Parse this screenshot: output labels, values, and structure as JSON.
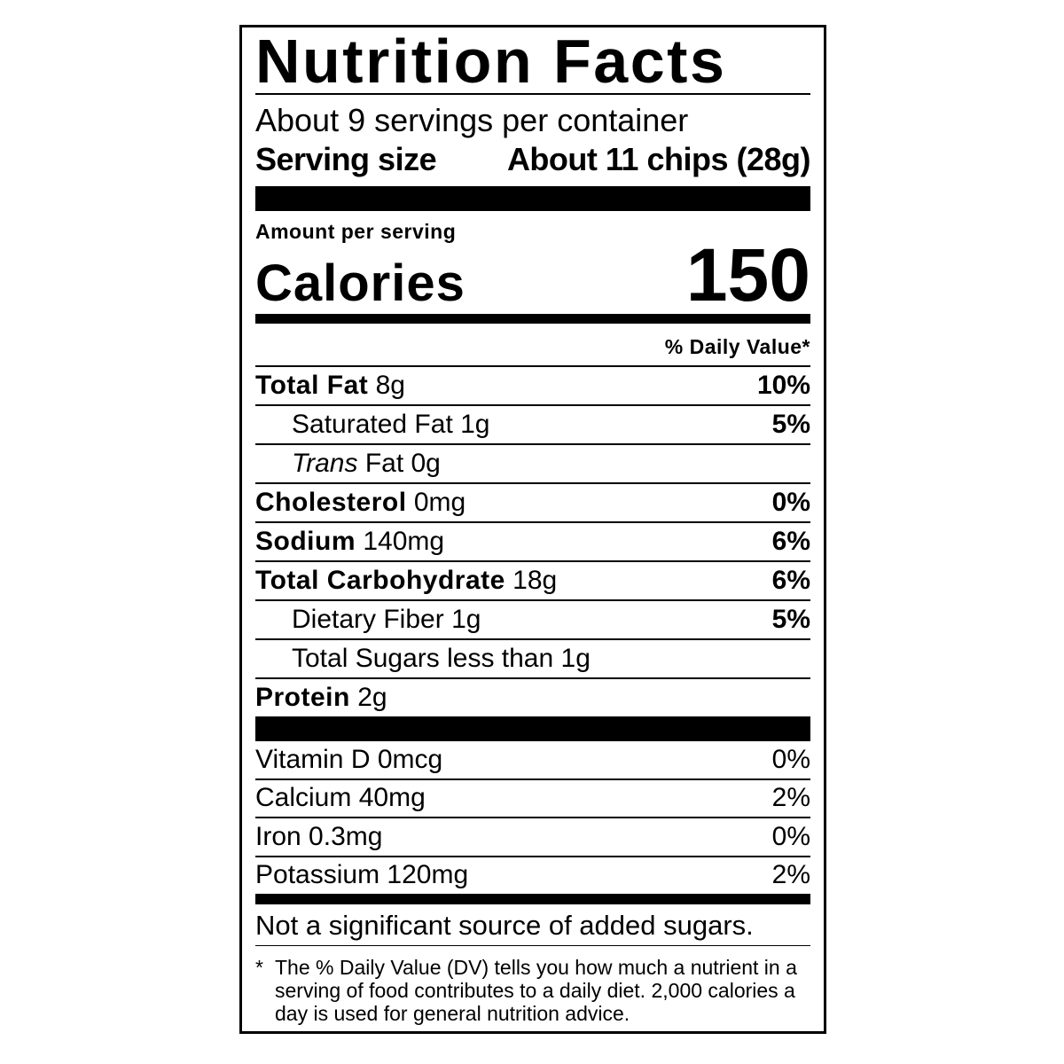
{
  "title": "Nutrition Facts",
  "servings": "About 9 servings per container",
  "serving_size": {
    "label": "Serving size",
    "value": "About 11 chips (28g)"
  },
  "amount_per_serving": "Amount per serving",
  "calories": {
    "label": "Calories",
    "value": "150"
  },
  "daily_value_header": "% Daily Value*",
  "nutrients": [
    {
      "name": "Total Fat",
      "amount": "8g",
      "dv": "10%"
    },
    {
      "name": "Saturated Fat",
      "amount": "1g",
      "dv": "5%"
    },
    {
      "name": "Trans",
      "amount": "Fat 0g"
    },
    {
      "name": "Cholesterol",
      "amount": "0mg",
      "dv": "0%"
    },
    {
      "name": "Sodium",
      "amount": "140mg",
      "dv": "6%"
    },
    {
      "name": "Total Carbohydrate",
      "amount": "18g",
      "dv": "6%"
    },
    {
      "name": "Dietary Fiber",
      "amount": "1g",
      "dv": "5%"
    },
    {
      "name": "Total Sugars less than",
      "amount": "1g"
    },
    {
      "name": "Protein",
      "amount": "2g"
    }
  ],
  "vitamins": [
    {
      "name": "Vitamin D",
      "amount": "0mcg",
      "dv": "0%"
    },
    {
      "name": "Calcium",
      "amount": "40mg",
      "dv": "2%"
    },
    {
      "name": "Iron",
      "amount": "0.3mg",
      "dv": "0%"
    },
    {
      "name": "Potassium",
      "amount": "120mg",
      "dv": "2%"
    }
  ],
  "note": "Not a significant source of added sugars.",
  "footnote": {
    "marker": "*",
    "text": "The % Daily Value (DV) tells you how much a nutrient in a serving of food contributes to a daily diet. 2,000 calories a day is used for general nutrition advice."
  }
}
